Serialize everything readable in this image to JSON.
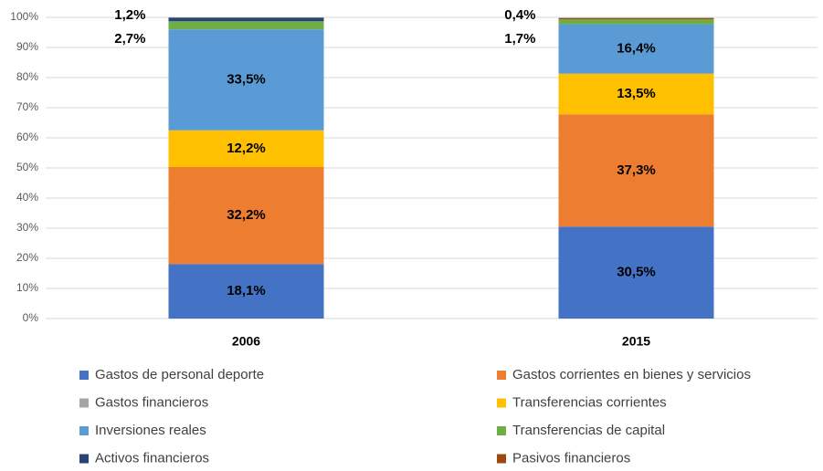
{
  "chart_data": {
    "type": "stacked_bar",
    "categories": [
      "2006",
      "2015"
    ],
    "series": [
      {
        "name": "Gastos de personal deporte",
        "color": "#4472c4",
        "values": [
          18.1,
          30.5
        ],
        "value_labels": [
          "18,1%",
          "30,5%"
        ]
      },
      {
        "name": "Gastos corrientes en bienes y servicios",
        "color": "#ed7d31",
        "values": [
          32.2,
          37.3
        ],
        "value_labels": [
          "32,2%",
          "37,3%"
        ]
      },
      {
        "name": "Gastos financieros",
        "color": "#a5a5a5",
        "values": [
          0,
          0
        ],
        "value_labels": [
          null,
          null
        ]
      },
      {
        "name": "Transferencias corrientes",
        "color": "#ffc000",
        "values": [
          12.2,
          13.5
        ],
        "value_labels": [
          "12,2%",
          "13,5%"
        ]
      },
      {
        "name": "Inversiones reales",
        "color": "#5b9bd5",
        "values": [
          33.5,
          16.4
        ],
        "value_labels": [
          "33,5%",
          "16,4%"
        ]
      },
      {
        "name": "Transferencias de capital",
        "color": "#70ad47",
        "values": [
          2.7,
          1.7
        ],
        "value_labels": [
          "2,7%",
          "1,7%"
        ]
      },
      {
        "name": "Activos financieros",
        "color": "#264478",
        "values": [
          1.2,
          0
        ],
        "value_labels": [
          "1,2%",
          null
        ]
      },
      {
        "name": "Pasivos financieros",
        "color": "#9e480e",
        "values": [
          0,
          0.4
        ],
        "value_labels": [
          null,
          "0,4%"
        ]
      }
    ],
    "ylim": [
      0,
      100
    ],
    "yticks": [
      {
        "value": 0,
        "label": "0%"
      },
      {
        "value": 10,
        "label": "10%"
      },
      {
        "value": 20,
        "label": "20%"
      },
      {
        "value": 30,
        "label": "30%"
      },
      {
        "value": 40,
        "label": "40%"
      },
      {
        "value": 50,
        "label": "50%"
      },
      {
        "value": 60,
        "label": "60%"
      },
      {
        "value": 70,
        "label": "70%"
      },
      {
        "value": 80,
        "label": "80%"
      },
      {
        "value": 90,
        "label": "90%"
      },
      {
        "value": 100,
        "label": "100%"
      }
    ],
    "grid": true
  }
}
